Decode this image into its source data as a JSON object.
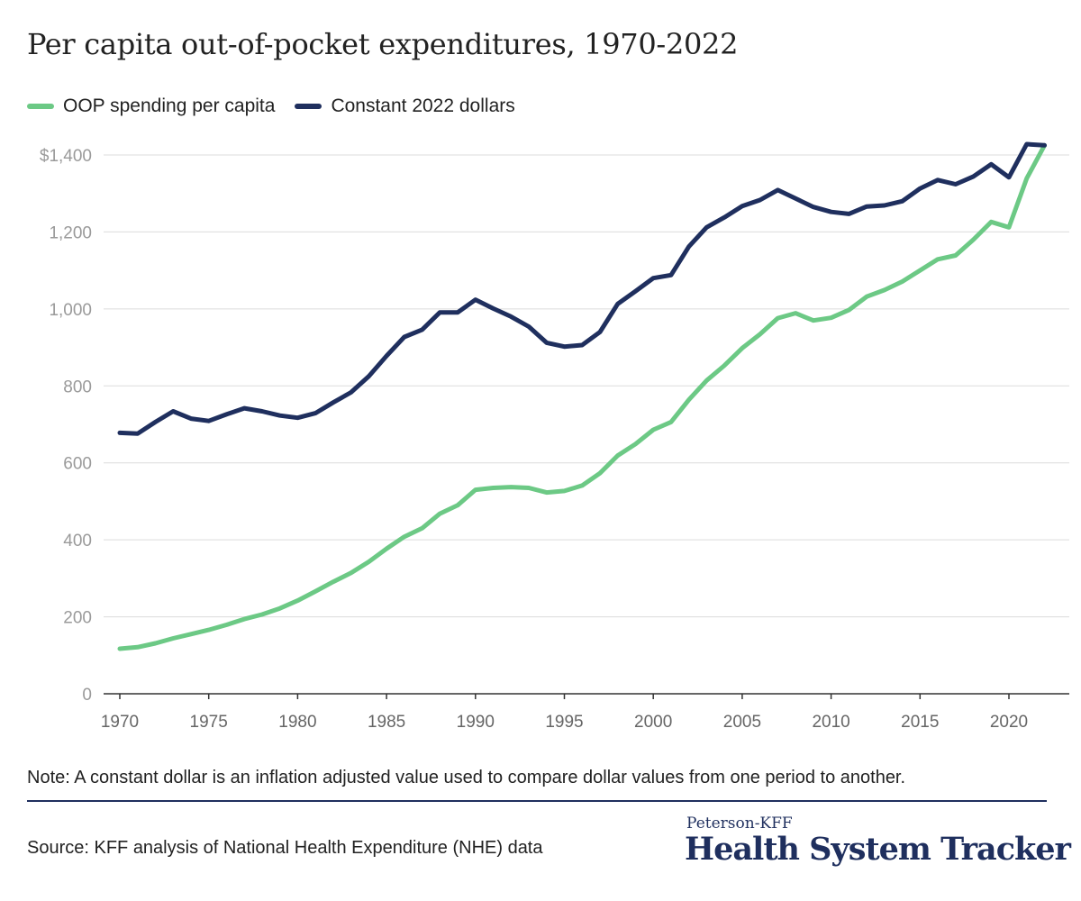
{
  "header": {
    "title": "Per capita out-of-pocket expenditures, 1970-2022"
  },
  "legend": [
    {
      "label": "OOP spending per capita",
      "color": "#6cc985"
    },
    {
      "label": "Constant 2022 dollars",
      "color": "#1f2f5e"
    }
  ],
  "footer": {
    "note": "Note: A constant dollar is an inflation adjusted value used to compare dollar values from one period to another.",
    "source": "Source: KFF analysis of National Health Expenditure (NHE) data",
    "brand_small": "Peterson-KFF",
    "brand_big": "Health System Tracker"
  },
  "chart_data": {
    "type": "line",
    "title": "Per capita out-of-pocket expenditures, 1970-2022",
    "xlabel": "",
    "ylabel": "",
    "xlim": [
      1970,
      2022
    ],
    "ylim": [
      0,
      1400
    ],
    "x_ticks": [
      "1970",
      "1975",
      "1980",
      "1985",
      "1990",
      "1995",
      "2000",
      "2005",
      "2010",
      "2015",
      "2020"
    ],
    "y_ticks": [
      "0",
      "200",
      "400",
      "600",
      "800",
      "1,000",
      "1,200",
      "$1,400"
    ],
    "y_tick_values": [
      0,
      200,
      400,
      600,
      800,
      1000,
      1200,
      1400
    ],
    "grid": true,
    "legend_position": "top-left",
    "x": [
      1970,
      1971,
      1972,
      1973,
      1974,
      1975,
      1976,
      1977,
      1978,
      1979,
      1980,
      1981,
      1982,
      1983,
      1984,
      1985,
      1986,
      1987,
      1988,
      1989,
      1990,
      1991,
      1992,
      1993,
      1994,
      1995,
      1996,
      1997,
      1998,
      1999,
      2000,
      2001,
      2002,
      2003,
      2004,
      2005,
      2006,
      2007,
      2008,
      2009,
      2010,
      2011,
      2012,
      2013,
      2014,
      2015,
      2016,
      2017,
      2018,
      2019,
      2020,
      2021,
      2022
    ],
    "series": [
      {
        "name": "OOP spending per capita",
        "color": "#6cc985",
        "values": [
          117,
          121,
          131,
          144,
          155,
          166,
          179,
          194,
          206,
          222,
          242,
          266,
          291,
          314,
          343,
          377,
          408,
          430,
          468,
          490,
          530,
          535,
          537,
          535,
          523,
          527,
          541,
          573,
          619,
          649,
          686,
          706,
          764,
          814,
          853,
          898,
          934,
          976,
          989,
          970,
          977,
          997,
          1032,
          1049,
          1071,
          1100,
          1129,
          1139,
          1180,
          1226,
          1212,
          1339,
          1425
        ]
      },
      {
        "name": "Constant 2022 dollars",
        "color": "#1f2f5e",
        "values": [
          678,
          676,
          706,
          734,
          715,
          709,
          726,
          742,
          734,
          723,
          717,
          729,
          757,
          783,
          825,
          878,
          927,
          946,
          991,
          991,
          1024,
          1001,
          980,
          954,
          912,
          902,
          906,
          940,
          1013,
          1046,
          1080,
          1088,
          1162,
          1212,
          1238,
          1267,
          1283,
          1309,
          1287,
          1265,
          1252,
          1247,
          1266,
          1269,
          1280,
          1313,
          1335,
          1324,
          1344,
          1376,
          1342,
          1428,
          1425
        ]
      }
    ]
  }
}
